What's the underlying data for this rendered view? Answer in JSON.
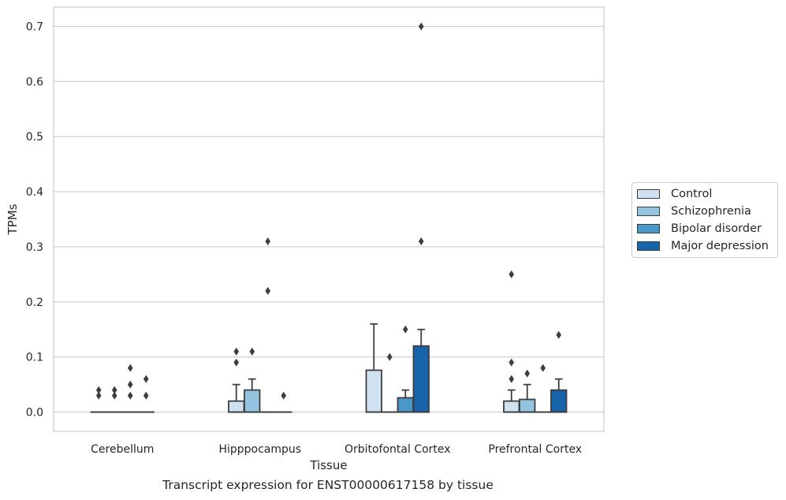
{
  "chart_data": {
    "type": "box",
    "caption": "Transcript expression for ENST00000617158 by tissue",
    "xlabel": "Tissue",
    "ylabel": "TPMs",
    "ylim": [
      -0.035,
      0.735
    ],
    "yticks": [
      0.0,
      0.1,
      0.2,
      0.3,
      0.4,
      0.5,
      0.6,
      0.7
    ],
    "ytick_labels": [
      "0.0",
      "0.1",
      "0.2",
      "0.3",
      "0.4",
      "0.5",
      "0.6",
      "0.7"
    ],
    "grid": "horizontal",
    "legend_position": "right",
    "categories": [
      "Cerebellum",
      "Hipppocampus",
      "Orbitofontal Cortex",
      "Prefrontal Cortex"
    ],
    "series": [
      {
        "name": "Control",
        "color": "#d0e1f2",
        "boxes": [
          {
            "q1": 0.0,
            "median": 0.0,
            "q3": 0.0,
            "whislo": 0.0,
            "whishi": 0.0,
            "fliers": [
              0.03,
              0.04
            ]
          },
          {
            "q1": 0.0,
            "median": 0.0,
            "q3": 0.02,
            "whislo": 0.0,
            "whishi": 0.05,
            "fliers": [
              0.09,
              0.11
            ]
          },
          {
            "q1": 0.0,
            "median": 0.0,
            "q3": 0.076,
            "whislo": 0.0,
            "whishi": 0.16,
            "fliers": []
          },
          {
            "q1": 0.0,
            "median": 0.0,
            "q3": 0.02,
            "whislo": 0.0,
            "whishi": 0.04,
            "fliers": [
              0.06,
              0.09,
              0.25
            ]
          }
        ]
      },
      {
        "name": "Schizophrenia",
        "color": "#94c4df",
        "boxes": [
          {
            "q1": 0.0,
            "median": 0.0,
            "q3": 0.0,
            "whislo": 0.0,
            "whishi": 0.0,
            "fliers": [
              0.03,
              0.04
            ]
          },
          {
            "q1": 0.0,
            "median": 0.0,
            "q3": 0.04,
            "whislo": 0.0,
            "whishi": 0.06,
            "fliers": [
              0.11
            ]
          },
          {
            "q1": 0.0,
            "median": 0.0,
            "q3": 0.0,
            "whislo": 0.0,
            "whishi": 0.0,
            "fliers": [
              0.1
            ]
          },
          {
            "q1": 0.0,
            "median": 0.0,
            "q3": 0.023,
            "whislo": 0.0,
            "whishi": 0.05,
            "fliers": [
              0.07
            ]
          }
        ]
      },
      {
        "name": "Bipolar disorder",
        "color": "#4a98c9",
        "boxes": [
          {
            "q1": 0.0,
            "median": 0.0,
            "q3": 0.0,
            "whislo": 0.0,
            "whishi": 0.0,
            "fliers": [
              0.03,
              0.05,
              0.08
            ]
          },
          {
            "q1": 0.0,
            "median": 0.0,
            "q3": 0.0,
            "whislo": 0.0,
            "whishi": 0.0,
            "fliers": [
              0.22,
              0.31
            ]
          },
          {
            "q1": 0.0,
            "median": 0.0,
            "q3": 0.026,
            "whislo": 0.0,
            "whishi": 0.04,
            "fliers": [
              0.15
            ]
          },
          {
            "q1": 0.0,
            "median": 0.0,
            "q3": 0.0,
            "whislo": 0.0,
            "whishi": 0.0,
            "fliers": [
              0.08
            ]
          }
        ]
      },
      {
        "name": "Major depression",
        "color": "#1764ab",
        "boxes": [
          {
            "q1": 0.0,
            "median": 0.0,
            "q3": 0.0,
            "whislo": 0.0,
            "whishi": 0.0,
            "fliers": [
              0.03,
              0.06
            ]
          },
          {
            "q1": 0.0,
            "median": 0.0,
            "q3": 0.0,
            "whislo": 0.0,
            "whishi": 0.0,
            "fliers": [
              0.03
            ]
          },
          {
            "q1": 0.0,
            "median": 0.0,
            "q3": 0.12,
            "whislo": 0.0,
            "whishi": 0.15,
            "fliers": [
              0.31,
              0.7
            ]
          },
          {
            "q1": 0.0,
            "median": 0.0,
            "q3": 0.04,
            "whislo": 0.0,
            "whishi": 0.06,
            "fliers": [
              0.14
            ]
          }
        ]
      }
    ]
  }
}
